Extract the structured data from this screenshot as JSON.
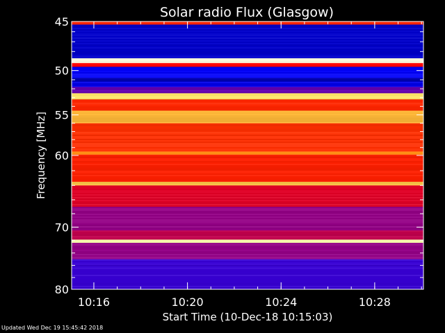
{
  "chart_data": {
    "type": "heatmap",
    "title": "Solar radio Flux (Glasgow)",
    "xlabel": "Start Time (10-Dec-18 10:15:03)",
    "ylabel": "Frequency [MHz]",
    "x_unit": "time (hh:mm)",
    "xlim": [
      "10:15:03",
      "10:30:05"
    ],
    "ylim": [
      45,
      80
    ],
    "y_scale": "log",
    "y_inverted": true,
    "x_ticks": [
      "10:16",
      "10:20",
      "10:24",
      "10:28"
    ],
    "y_ticks": [
      45,
      50,
      55,
      60,
      70,
      80
    ],
    "colormap": [
      "#000080",
      "#0000ff",
      "#8000a0",
      "#ff0000",
      "#ff8000",
      "#ffff80",
      "#ffffff"
    ],
    "frequency_bands": [
      {
        "from": 45.0,
        "to": 45.3,
        "level": 0.55
      },
      {
        "from": 45.3,
        "to": 48.7,
        "level": 0.1
      },
      {
        "from": 48.7,
        "to": 49.2,
        "level": 0.96
      },
      {
        "from": 49.2,
        "to": 49.6,
        "level": 0.5
      },
      {
        "from": 49.6,
        "to": 50.8,
        "level": 0.16
      },
      {
        "from": 50.8,
        "to": 51.2,
        "level": 0.06
      },
      {
        "from": 51.2,
        "to": 51.8,
        "level": 0.14
      },
      {
        "from": 51.8,
        "to": 52.5,
        "level": 0.3
      },
      {
        "from": 52.5,
        "to": 53.2,
        "level": 0.8
      },
      {
        "from": 53.2,
        "to": 54.5,
        "level": 0.55
      },
      {
        "from": 54.5,
        "to": 56.0,
        "level": 0.74
      },
      {
        "from": 56.0,
        "to": 59.5,
        "level": 0.56
      },
      {
        "from": 59.5,
        "to": 59.9,
        "level": 0.68
      },
      {
        "from": 59.9,
        "to": 63.5,
        "level": 0.54
      },
      {
        "from": 63.5,
        "to": 64.0,
        "level": 0.76
      },
      {
        "from": 64.0,
        "to": 67.0,
        "level": 0.46
      },
      {
        "from": 67.0,
        "to": 70.5,
        "level": 0.36
      },
      {
        "from": 70.5,
        "to": 71.9,
        "level": 0.42
      },
      {
        "from": 71.9,
        "to": 72.4,
        "level": 0.9
      },
      {
        "from": 72.4,
        "to": 75.0,
        "level": 0.36
      },
      {
        "from": 75.0,
        "to": 80.0,
        "level": 0.24
      }
    ],
    "annotations": []
  },
  "footer": {
    "updated": "Updated Wed Dec 19 15:45:42 2018"
  }
}
